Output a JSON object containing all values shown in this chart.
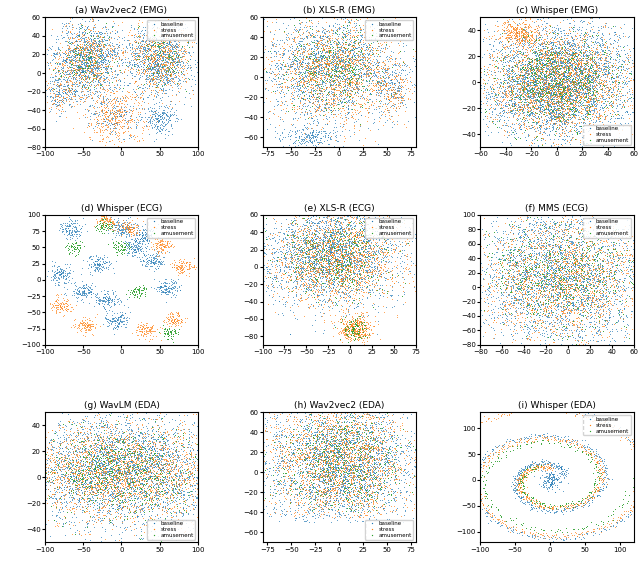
{
  "subplots": [
    {
      "title": "(a) Wav2vec2 (EMG)",
      "xlim": [
        -100,
        100
      ],
      "ylim": [
        -80,
        60
      ],
      "legend_loc": "upper right"
    },
    {
      "title": "(b) XLS-R (EMG)",
      "xlim": [
        -80,
        80
      ],
      "ylim": [
        -70,
        60
      ],
      "legend_loc": "upper right"
    },
    {
      "title": "(c) Whisper (EMG)",
      "xlim": [
        -60,
        60
      ],
      "ylim": [
        -50,
        50
      ],
      "legend_loc": "lower right"
    },
    {
      "title": "(d) Whisper (ECG)",
      "xlim": [
        -100,
        100
      ],
      "ylim": [
        -100,
        100
      ],
      "legend_loc": "upper right"
    },
    {
      "title": "(e) XLS-R (ECG)",
      "xlim": [
        -100,
        75
      ],
      "ylim": [
        -90,
        60
      ],
      "legend_loc": "upper right"
    },
    {
      "title": "(f) MMS (ECG)",
      "xlim": [
        -80,
        60
      ],
      "ylim": [
        -80,
        100
      ],
      "legend_loc": "upper right"
    },
    {
      "title": "(g) WavLM (EDA)",
      "xlim": [
        -100,
        100
      ],
      "ylim": [
        -50,
        50
      ],
      "legend_loc": "lower right"
    },
    {
      "title": "(h) Wav2vec2 (EDA)",
      "xlim": [
        -80,
        80
      ],
      "ylim": [
        -70,
        60
      ],
      "legend_loc": "lower right"
    },
    {
      "title": "(i) Whisper (EDA)",
      "xlim": [
        -100,
        120
      ],
      "ylim": [
        -120,
        130
      ],
      "legend_loc": "upper right"
    }
  ],
  "colors": {
    "blue": "#1f77b4",
    "orange": "#ff7f0e",
    "green": "#2ca02c"
  },
  "legend_labels": [
    "baseline",
    "stress",
    "amusement"
  ],
  "figsize": [
    6.4,
    5.77
  ],
  "dpi": 100
}
